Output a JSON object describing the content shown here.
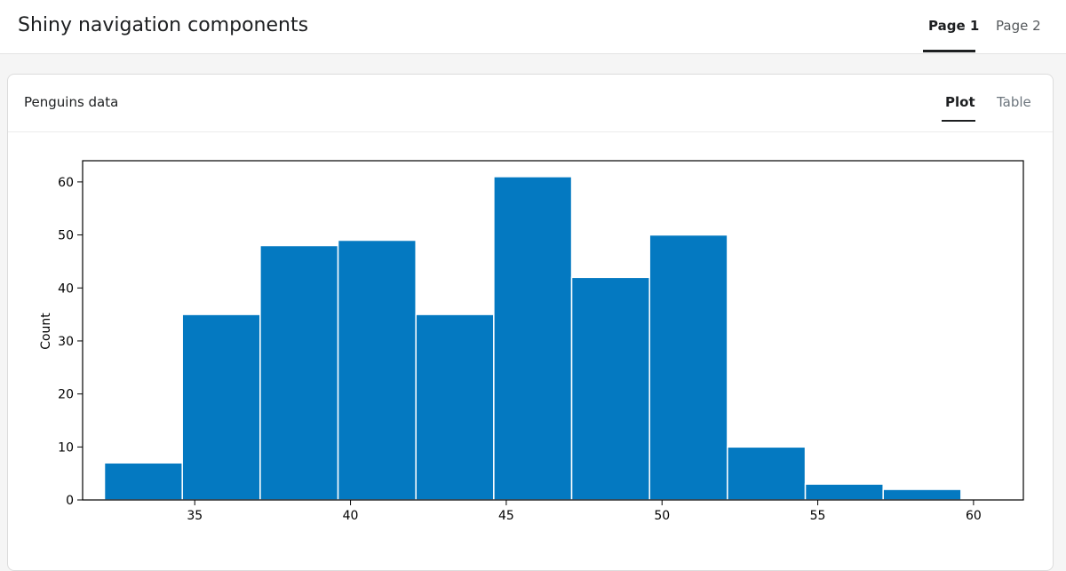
{
  "app": {
    "title": "Shiny navigation components"
  },
  "nav": {
    "items": [
      {
        "label": "Page 1",
        "active": true
      },
      {
        "label": "Page 2",
        "active": false
      }
    ]
  },
  "card": {
    "title": "Penguins data",
    "tabs": [
      {
        "label": "Plot",
        "active": true
      },
      {
        "label": "Table",
        "active": false
      }
    ]
  },
  "colors": {
    "bar": "#0479c1",
    "accent": "#1d1f21"
  },
  "chart_data": {
    "type": "bar",
    "title": "",
    "xlabel": "",
    "ylabel": "Count",
    "xlim": [
      31.4,
      61.6
    ],
    "ylim": [
      0,
      64
    ],
    "xticks": [
      35,
      40,
      45,
      50,
      55,
      60
    ],
    "yticks": [
      0,
      10,
      20,
      30,
      40,
      50,
      60
    ],
    "bins": [
      {
        "x0": 32.1,
        "x1": 34.6,
        "count": 7
      },
      {
        "x0": 34.6,
        "x1": 37.1,
        "count": 35
      },
      {
        "x0": 37.1,
        "x1": 39.6,
        "count": 48
      },
      {
        "x0": 39.6,
        "x1": 42.1,
        "count": 49
      },
      {
        "x0": 42.1,
        "x1": 44.6,
        "count": 35
      },
      {
        "x0": 44.6,
        "x1": 47.1,
        "count": 61
      },
      {
        "x0": 47.1,
        "x1": 49.6,
        "count": 42
      },
      {
        "x0": 49.6,
        "x1": 52.1,
        "count": 50
      },
      {
        "x0": 52.1,
        "x1": 54.6,
        "count": 10
      },
      {
        "x0": 54.6,
        "x1": 57.1,
        "count": 3
      },
      {
        "x0": 57.1,
        "x1": 59.6,
        "count": 2
      }
    ]
  }
}
